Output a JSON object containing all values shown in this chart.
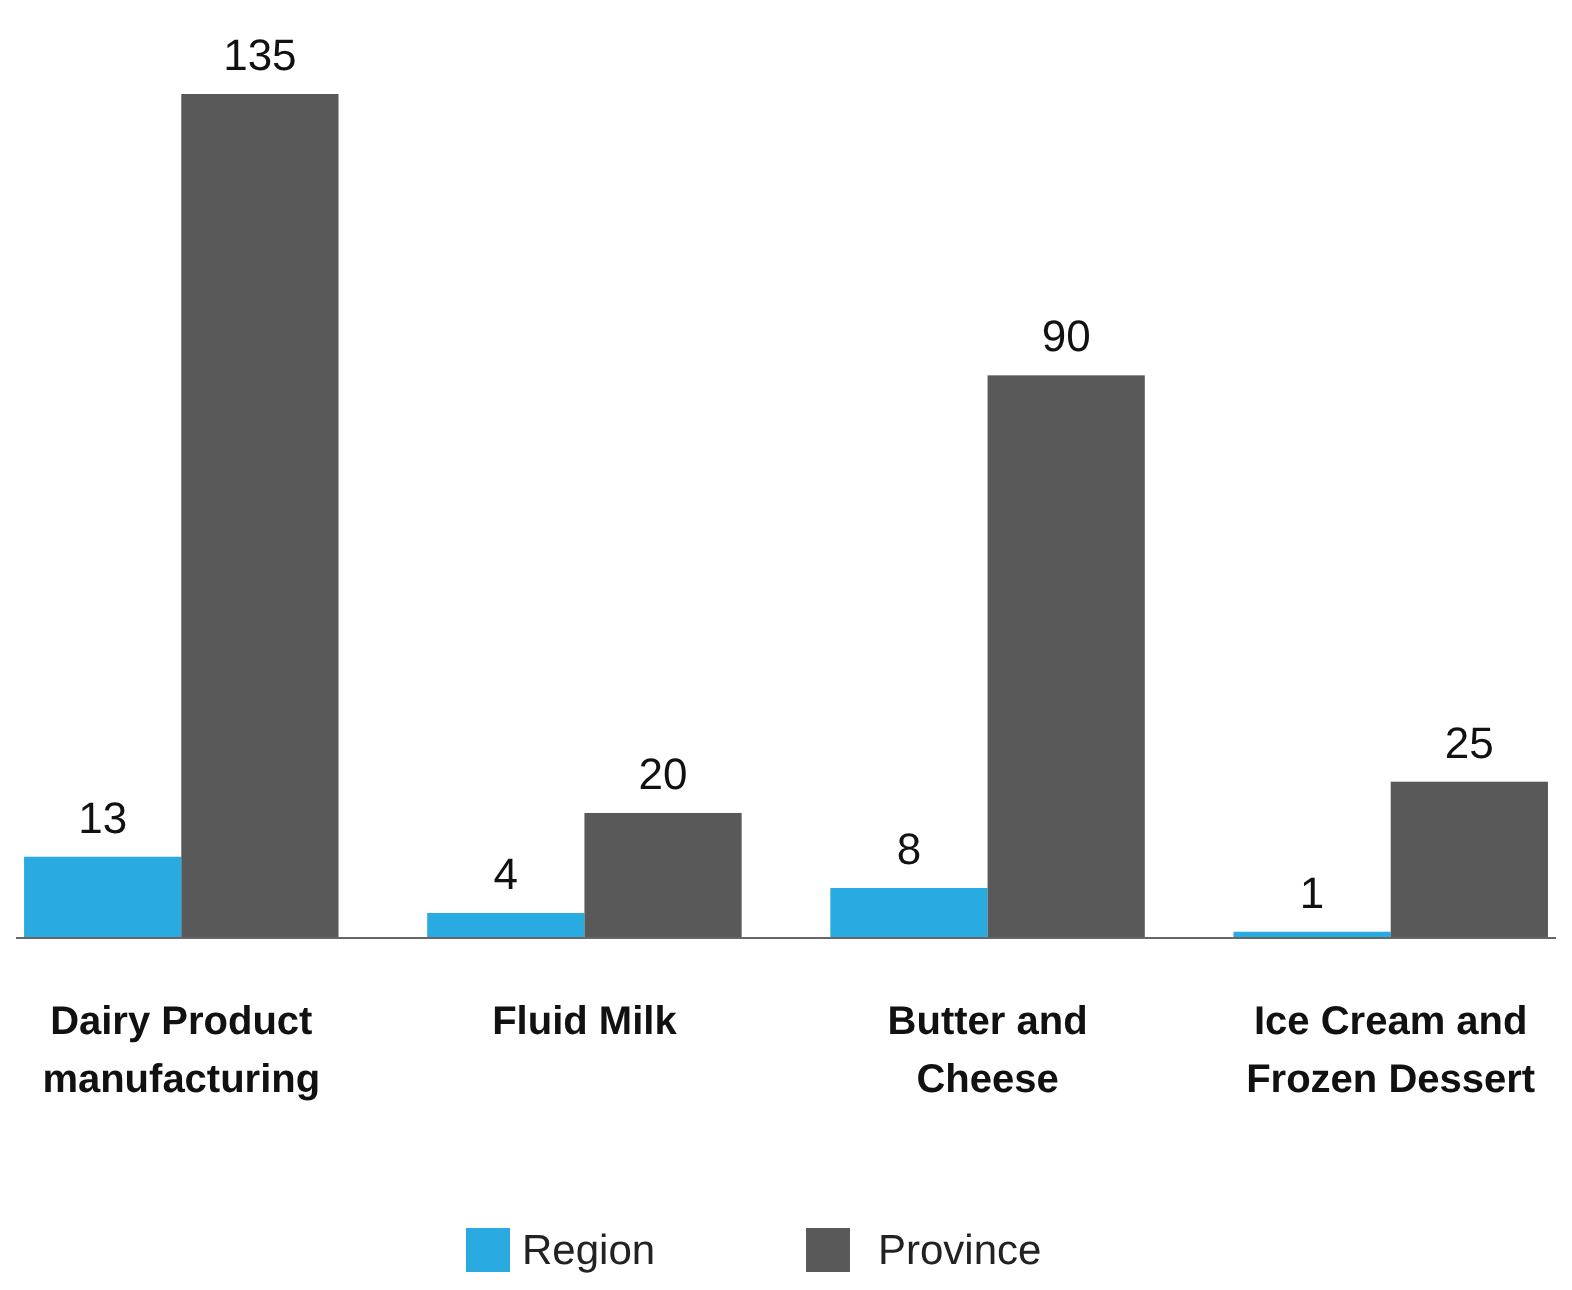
{
  "chart_data": {
    "type": "bar",
    "categories": [
      "Dairy Product manufacturing",
      "Fluid Milk",
      "Butter and Cheese",
      "Ice Cream and Frozen Dessert"
    ],
    "series": [
      {
        "name": "Region",
        "color": "#29abe2",
        "values": [
          13,
          4,
          8,
          1
        ]
      },
      {
        "name": "Province",
        "color": "#595959",
        "values": [
          135,
          20,
          90,
          25
        ]
      }
    ],
    "data_labels": true,
    "legend": "bottom"
  }
}
